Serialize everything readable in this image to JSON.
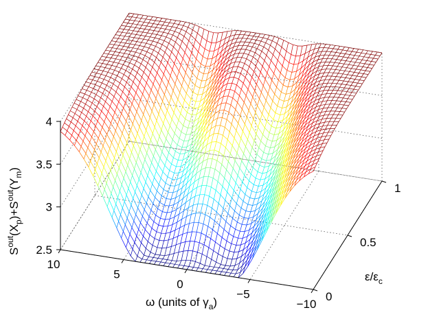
{
  "chart_data": {
    "type": "surface",
    "title": "",
    "x_axis": {
      "label_main": "ω (units of γ",
      "label_sub": "a",
      "label_close": ")",
      "ticks": [
        10,
        5,
        0,
        -5,
        -10
      ],
      "tick_labels": [
        "10",
        "5",
        "0",
        "−5",
        "−10"
      ],
      "range": [
        -10,
        10
      ]
    },
    "y_axis": {
      "label_main": "ε/ε",
      "label_sub": "c",
      "ticks": [
        0,
        0.5,
        1
      ],
      "tick_labels": [
        "0",
        "0.5",
        "1"
      ],
      "range": [
        0,
        1
      ]
    },
    "z_axis": {
      "label": "S^out(X_p)+S^out(Y_m)",
      "label_parts": [
        "S",
        "out",
        "(X",
        "p",
        ")+S",
        "out",
        "(Y",
        "m",
        ")"
      ],
      "ticks": [
        2.5,
        3,
        3.5,
        4
      ],
      "tick_labels": [
        "2.5",
        "3",
        "3.5",
        "4"
      ],
      "range": [
        2.5,
        4
      ]
    },
    "surface": {
      "plateau_value": 4.0,
      "dip_centers_omega": [
        3.3,
        -3.3
      ],
      "dip_min_value": 2.5,
      "notes_on_shape": "value 4 far from resonance; two dips near omega = ±3.3 that deepen as eps/eps_c goes from 0 to 1",
      "grid_x_count": 55,
      "grid_y_count": 36,
      "colormap": "jet"
    },
    "grid": true
  }
}
